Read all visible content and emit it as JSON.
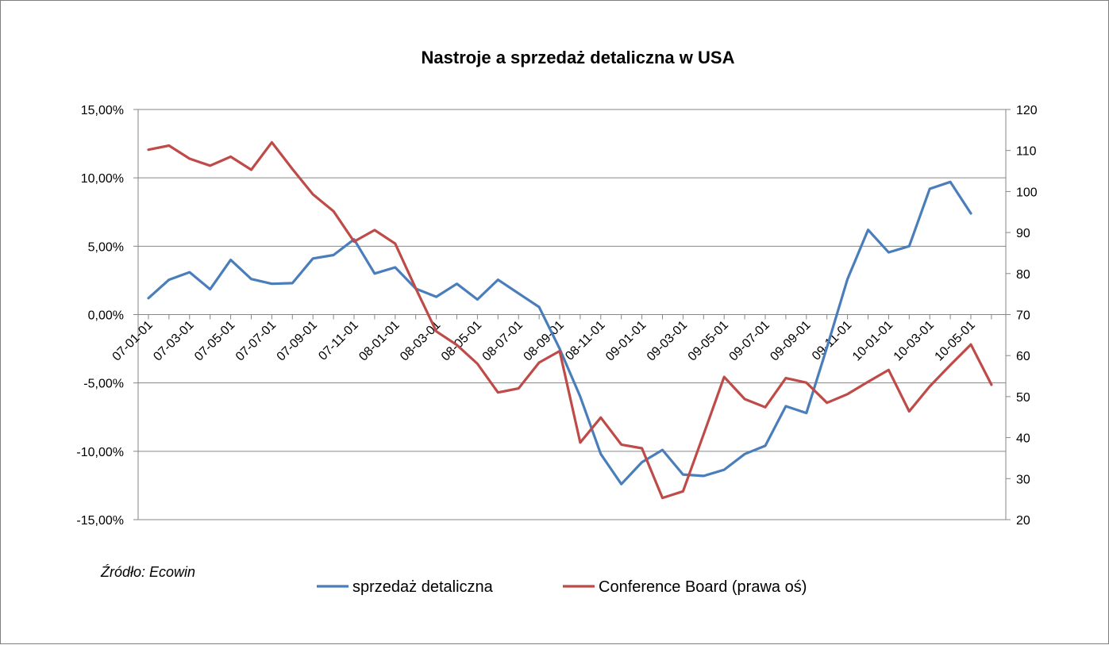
{
  "chart_data": {
    "type": "line",
    "title": "Nastroje a sprzedaż detaliczna w USA",
    "source_note": "Źródło: Ecowin",
    "x": [
      "07-01-01",
      "07-02-01",
      "07-03-01",
      "07-04-01",
      "07-05-01",
      "07-06-01",
      "07-07-01",
      "07-08-01",
      "07-09-01",
      "07-10-01",
      "07-11-01",
      "07-12-01",
      "08-01-01",
      "08-02-01",
      "08-03-01",
      "08-04-01",
      "08-05-01",
      "08-06-01",
      "08-07-01",
      "08-08-01",
      "08-09-01",
      "08-10-01",
      "08-11-01",
      "08-12-01",
      "09-01-01",
      "09-02-01",
      "09-03-01",
      "09-04-01",
      "09-05-01",
      "09-06-01",
      "09-07-01",
      "09-08-01",
      "09-09-01",
      "09-10-01",
      "09-11-01",
      "09-12-01",
      "10-01-01",
      "10-02-01",
      "10-03-01",
      "10-04-01",
      "10-05-01",
      "10-06-01"
    ],
    "x_tick_labels": [
      "07-01-01",
      "07-03-01",
      "07-05-01",
      "07-07-01",
      "07-09-01",
      "07-11-01",
      "08-01-01",
      "08-03-01",
      "08-05-01",
      "08-07-01",
      "08-09-01",
      "08-11-01",
      "09-01-01",
      "09-03-01",
      "09-05-01",
      "09-07-01",
      "09-09-01",
      "09-11-01",
      "10-01-01",
      "10-03-01",
      "10-05-01"
    ],
    "y_left": {
      "ticks": [
        "15,00%",
        "10,00%",
        "5,00%",
        "0,00%",
        "-5,00%",
        "-10,00%",
        "-15,00%"
      ],
      "range": [
        -15,
        15
      ],
      "tick_values": [
        15,
        10,
        5,
        0,
        -5,
        -10,
        -15
      ]
    },
    "y_right": {
      "ticks": [
        "120",
        "110",
        "100",
        "90",
        "80",
        "70",
        "60",
        "50",
        "40",
        "30",
        "20"
      ],
      "range": [
        20,
        120
      ],
      "tick_values": [
        120,
        110,
        100,
        90,
        80,
        70,
        60,
        50,
        40,
        30,
        20
      ]
    },
    "grid": true,
    "legend_position": "bottom",
    "series": [
      {
        "name": "sprzedaż detaliczna",
        "axis": "left",
        "color": "#4a7ebb",
        "values": [
          1.2,
          2.55,
          3.1,
          1.85,
          4.0,
          2.6,
          2.25,
          2.3,
          4.1,
          4.35,
          5.5,
          3.0,
          3.45,
          1.9,
          1.3,
          2.25,
          1.1,
          2.55,
          1.55,
          0.55,
          -2.5,
          -6.0,
          -10.2,
          -12.4,
          -10.8,
          -9.9,
          -11.7,
          -11.8,
          -11.35,
          -10.2,
          -9.6,
          -6.7,
          -7.2,
          -2.4,
          2.6,
          6.2,
          4.55,
          5.0,
          9.2,
          9.7,
          7.4,
          null
        ]
      },
      {
        "name": "Conference Board (prawa oś)",
        "axis": "right",
        "color": "#be4b48",
        "values": [
          110.2,
          111.2,
          108.0,
          106.3,
          108.5,
          105.3,
          112.0,
          105.5,
          99.3,
          95.2,
          87.8,
          90.6,
          87.3,
          76.4,
          65.9,
          62.6,
          58.0,
          51.0,
          52.0,
          58.3,
          61.1,
          38.8,
          44.9,
          38.3,
          37.4,
          25.3,
          26.9,
          40.8,
          54.8,
          49.4,
          47.4,
          54.5,
          53.4,
          48.5,
          50.6,
          53.6,
          56.5,
          46.4,
          52.5,
          57.7,
          62.7,
          52.9
        ]
      }
    ]
  }
}
